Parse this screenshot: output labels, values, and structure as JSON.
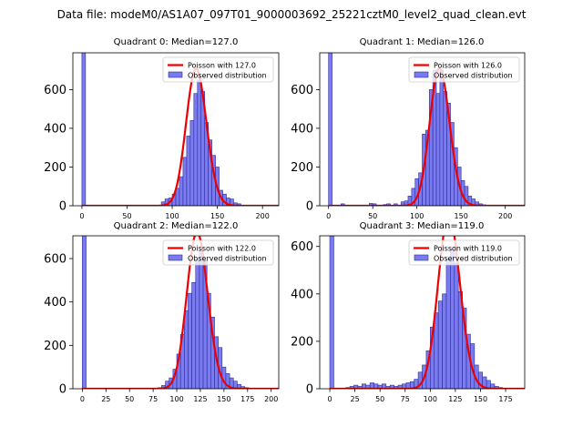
{
  "figure": {
    "suptitle": "Data file: modeM0/AS1A07_097T01_9000003692_25221cztM0_level2_quad_clean.evt"
  },
  "chart_data": [
    {
      "type": "bar",
      "title": "Quadrant 0: Median=127.0",
      "median": 127.0,
      "xlim": [
        -10,
        218
      ],
      "ylim": [
        0,
        790
      ],
      "xticks": [
        0,
        50,
        100,
        150,
        200
      ],
      "yticks": [
        0,
        200,
        400,
        600
      ],
      "legend": {
        "position": "top-right",
        "curve_label": "Poisson with 127.0",
        "bars_label": "Observed distribution"
      },
      "bin_width": 4,
      "bins": [
        [
          0,
          800
        ],
        [
          88,
          20
        ],
        [
          92,
          35
        ],
        [
          96,
          40
        ],
        [
          100,
          60
        ],
        [
          104,
          90
        ],
        [
          108,
          150
        ],
        [
          112,
          250
        ],
        [
          116,
          360
        ],
        [
          120,
          440
        ],
        [
          124,
          580
        ],
        [
          128,
          650
        ],
        [
          132,
          590
        ],
        [
          136,
          430
        ],
        [
          140,
          340
        ],
        [
          144,
          260
        ],
        [
          148,
          200
        ],
        [
          152,
          80
        ],
        [
          156,
          60
        ],
        [
          160,
          40
        ],
        [
          164,
          35
        ],
        [
          168,
          15
        ],
        [
          172,
          10
        ]
      ]
    },
    {
      "type": "bar",
      "title": "Quadrant 1: Median=126.0",
      "median": 126.0,
      "xlim": [
        -10,
        222
      ],
      "ylim": [
        0,
        790
      ],
      "xticks": [
        0,
        50,
        100,
        150,
        200
      ],
      "yticks": [
        0,
        200,
        400,
        600
      ],
      "legend": {
        "position": "top-right",
        "curve_label": "Poisson with 126.0",
        "bars_label": "Observed distribution"
      },
      "bin_width": 4,
      "bins": [
        [
          0,
          800
        ],
        [
          14,
          10
        ],
        [
          46,
          12
        ],
        [
          50,
          10
        ],
        [
          62,
          6
        ],
        [
          66,
          10
        ],
        [
          74,
          10
        ],
        [
          82,
          20
        ],
        [
          86,
          25
        ],
        [
          90,
          50
        ],
        [
          94,
          90
        ],
        [
          98,
          140
        ],
        [
          102,
          170
        ],
        [
          106,
          370
        ],
        [
          110,
          390
        ],
        [
          114,
          600
        ],
        [
          118,
          700
        ],
        [
          122,
          580
        ],
        [
          126,
          700
        ],
        [
          130,
          590
        ],
        [
          134,
          530
        ],
        [
          138,
          430
        ],
        [
          142,
          300
        ],
        [
          146,
          200
        ],
        [
          150,
          130
        ],
        [
          154,
          100
        ],
        [
          158,
          50
        ],
        [
          162,
          35
        ],
        [
          166,
          20
        ],
        [
          170,
          10
        ],
        [
          174,
          5
        ]
      ]
    },
    {
      "type": "bar",
      "title": "Quadrant 2: Median=122.0",
      "median": 122.0,
      "xlim": [
        -10,
        208
      ],
      "ylim": [
        0,
        705
      ],
      "xticks": [
        0,
        25,
        50,
        75,
        100,
        125,
        150,
        175,
        200
      ],
      "yticks": [
        0,
        200,
        400,
        600
      ],
      "legend": {
        "position": "top-right",
        "curve_label": "Poisson with 122.0",
        "bars_label": "Observed distribution"
      },
      "bin_width": 4,
      "bins": [
        [
          0,
          720
        ],
        [
          80,
          5
        ],
        [
          84,
          15
        ],
        [
          88,
          35
        ],
        [
          92,
          50
        ],
        [
          96,
          90
        ],
        [
          100,
          160
        ],
        [
          104,
          250
        ],
        [
          108,
          360
        ],
        [
          112,
          440
        ],
        [
          116,
          490
        ],
        [
          120,
          600
        ],
        [
          124,
          640
        ],
        [
          128,
          590
        ],
        [
          132,
          440
        ],
        [
          136,
          330
        ],
        [
          140,
          240
        ],
        [
          144,
          190
        ],
        [
          148,
          100
        ],
        [
          152,
          70
        ],
        [
          156,
          50
        ],
        [
          160,
          35
        ],
        [
          164,
          20
        ],
        [
          168,
          10
        ],
        [
          172,
          5
        ]
      ]
    },
    {
      "type": "bar",
      "title": "Quadrant 3: Median=119.0",
      "median": 119.0,
      "xlim": [
        -10,
        194
      ],
      "ylim": [
        0,
        645
      ],
      "xticks": [
        0,
        25,
        50,
        75,
        100,
        125,
        150,
        175
      ],
      "yticks": [
        0,
        200,
        400,
        600
      ],
      "legend": {
        "position": "top-right",
        "curve_label": "Poisson with 119.0",
        "bars_label": "Observed distribution"
      },
      "bin_width": 4,
      "bins": [
        [
          0,
          660
        ],
        [
          16,
          5
        ],
        [
          20,
          10
        ],
        [
          24,
          15
        ],
        [
          28,
          10
        ],
        [
          32,
          20
        ],
        [
          36,
          15
        ],
        [
          40,
          25
        ],
        [
          44,
          20
        ],
        [
          48,
          15
        ],
        [
          52,
          20
        ],
        [
          56,
          10
        ],
        [
          60,
          15
        ],
        [
          64,
          10
        ],
        [
          68,
          15
        ],
        [
          72,
          20
        ],
        [
          76,
          25
        ],
        [
          80,
          30
        ],
        [
          84,
          40
        ],
        [
          88,
          70
        ],
        [
          92,
          100
        ],
        [
          96,
          160
        ],
        [
          100,
          260
        ],
        [
          104,
          320
        ],
        [
          108,
          370
        ],
        [
          112,
          400
        ],
        [
          116,
          550
        ],
        [
          120,
          590
        ],
        [
          124,
          530
        ],
        [
          128,
          410
        ],
        [
          132,
          340
        ],
        [
          136,
          230
        ],
        [
          140,
          190
        ],
        [
          144,
          100
        ],
        [
          148,
          70
        ],
        [
          152,
          50
        ],
        [
          156,
          35
        ],
        [
          160,
          20
        ],
        [
          164,
          10
        ],
        [
          168,
          5
        ]
      ]
    }
  ]
}
